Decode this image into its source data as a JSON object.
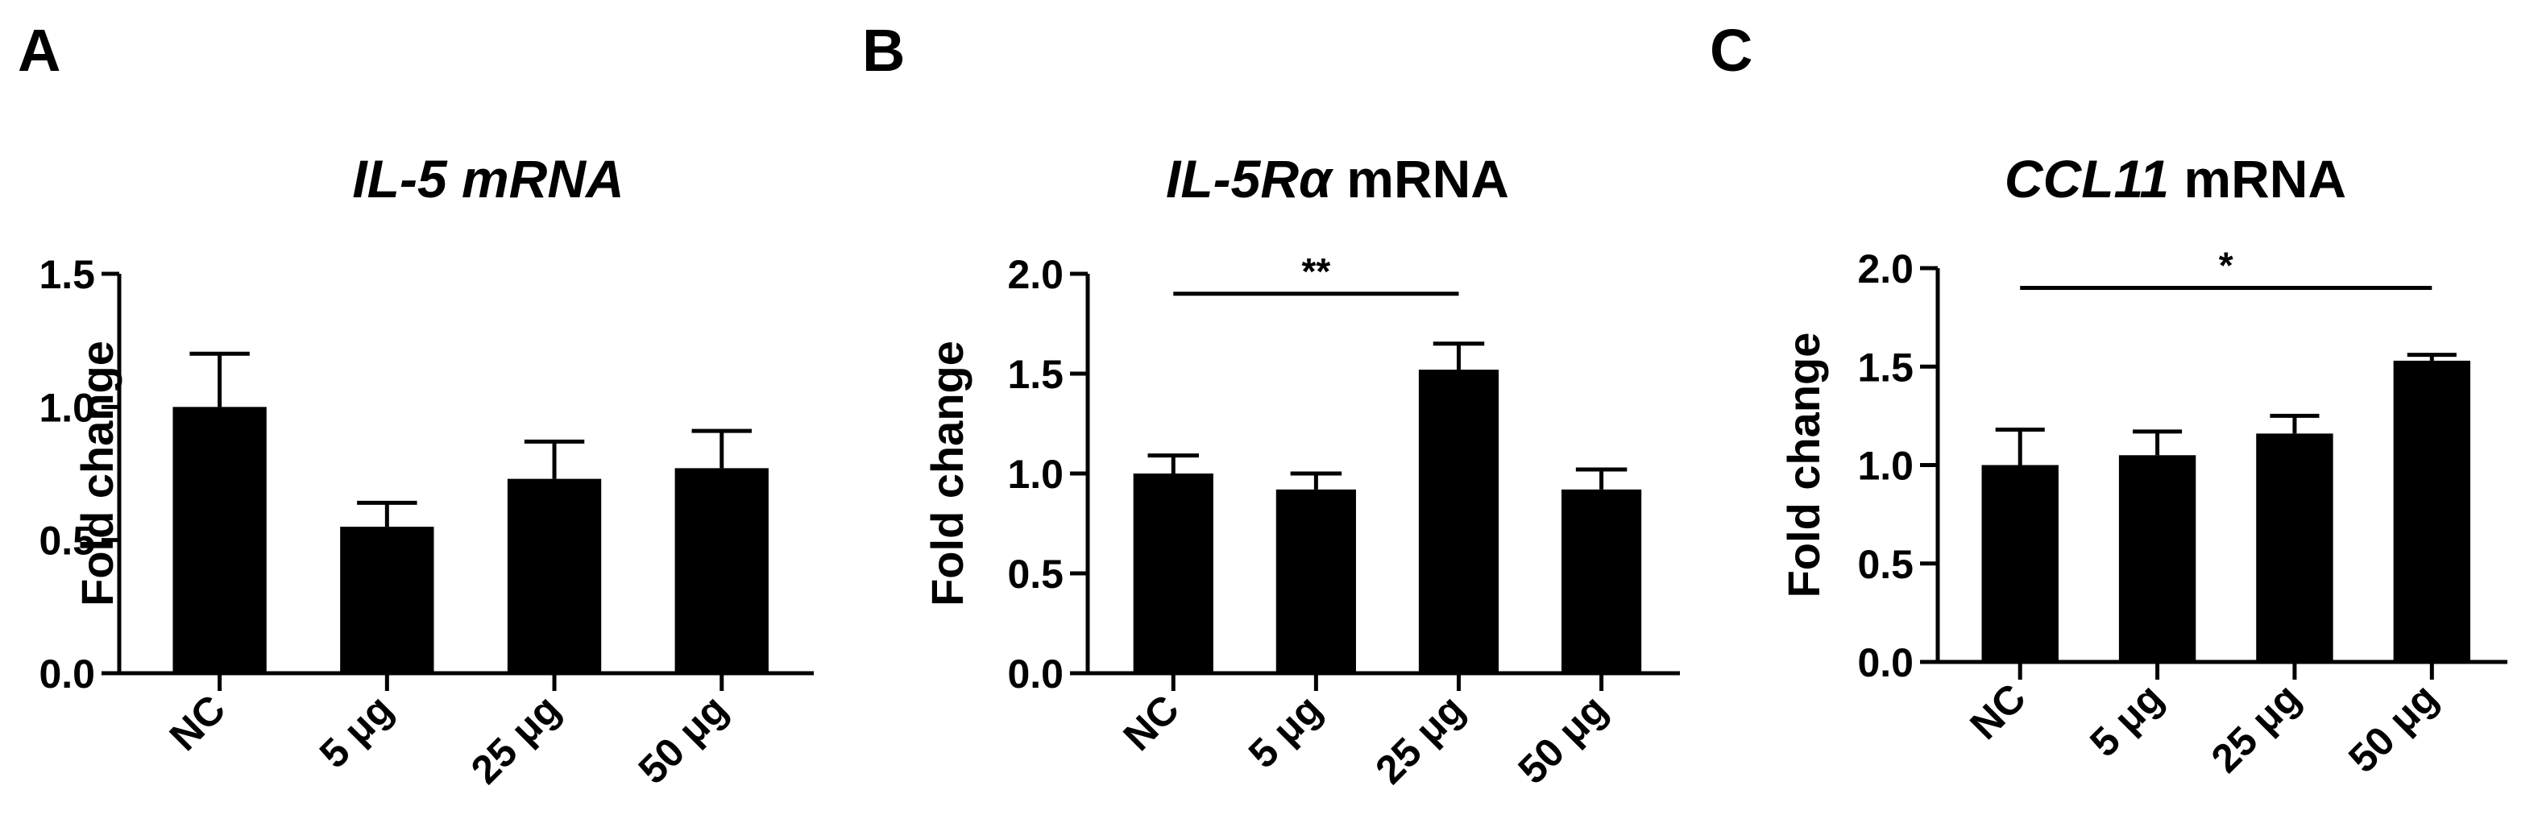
{
  "panel_labels": [
    "A",
    "B",
    "C"
  ],
  "chart_data": [
    {
      "type": "bar",
      "panel": "A",
      "title_parts": [
        {
          "text": "IL-5 mRNA",
          "italic": true
        }
      ],
      "ylabel": "Fold change",
      "xlabel": "",
      "categories": [
        "NC",
        "5 μg",
        "25 μg",
        "50 μg"
      ],
      "values": [
        1.0,
        0.55,
        0.73,
        0.77
      ],
      "errors": [
        0.2,
        0.09,
        0.14,
        0.14
      ],
      "ylim": [
        0,
        1.5
      ],
      "yticks": [
        "0.0",
        "0.5",
        "1.0",
        "1.5"
      ],
      "bar_color": "#000000",
      "significance": []
    },
    {
      "type": "bar",
      "panel": "B",
      "title_parts": [
        {
          "text": "IL-5Rα",
          "italic": true
        },
        {
          "text": " mRNA",
          "italic": false
        }
      ],
      "ylabel": "Fold change",
      "xlabel": "",
      "categories": [
        "NC",
        "5 μg",
        "25 μg",
        "50 μg"
      ],
      "values": [
        1.0,
        0.92,
        1.52,
        0.92
      ],
      "errors": [
        0.09,
        0.08,
        0.13,
        0.1
      ],
      "ylim": [
        0,
        2.0
      ],
      "yticks": [
        "0.0",
        "0.5",
        "1.0",
        "1.5",
        "2.0"
      ],
      "bar_color": "#000000",
      "significance": [
        {
          "from": 0,
          "to": 2,
          "label": "**",
          "y": 1.9
        }
      ]
    },
    {
      "type": "bar",
      "panel": "C",
      "title_parts": [
        {
          "text": "CCL11",
          "italic": true
        },
        {
          "text": " mRNA",
          "italic": false
        }
      ],
      "ylabel": "Fold change",
      "xlabel": "",
      "categories": [
        "NC",
        "5 μg",
        "25 μg",
        "50 μg"
      ],
      "values": [
        1.0,
        1.05,
        1.16,
        1.53
      ],
      "errors": [
        0.18,
        0.12,
        0.09,
        0.03
      ],
      "ylim": [
        0,
        2.0
      ],
      "yticks": [
        "0.0",
        "0.5",
        "1.0",
        "1.5",
        "2.0"
      ],
      "bar_color": "#000000",
      "significance": [
        {
          "from": 0,
          "to": 3,
          "label": "*",
          "y": 1.9
        }
      ]
    }
  ]
}
